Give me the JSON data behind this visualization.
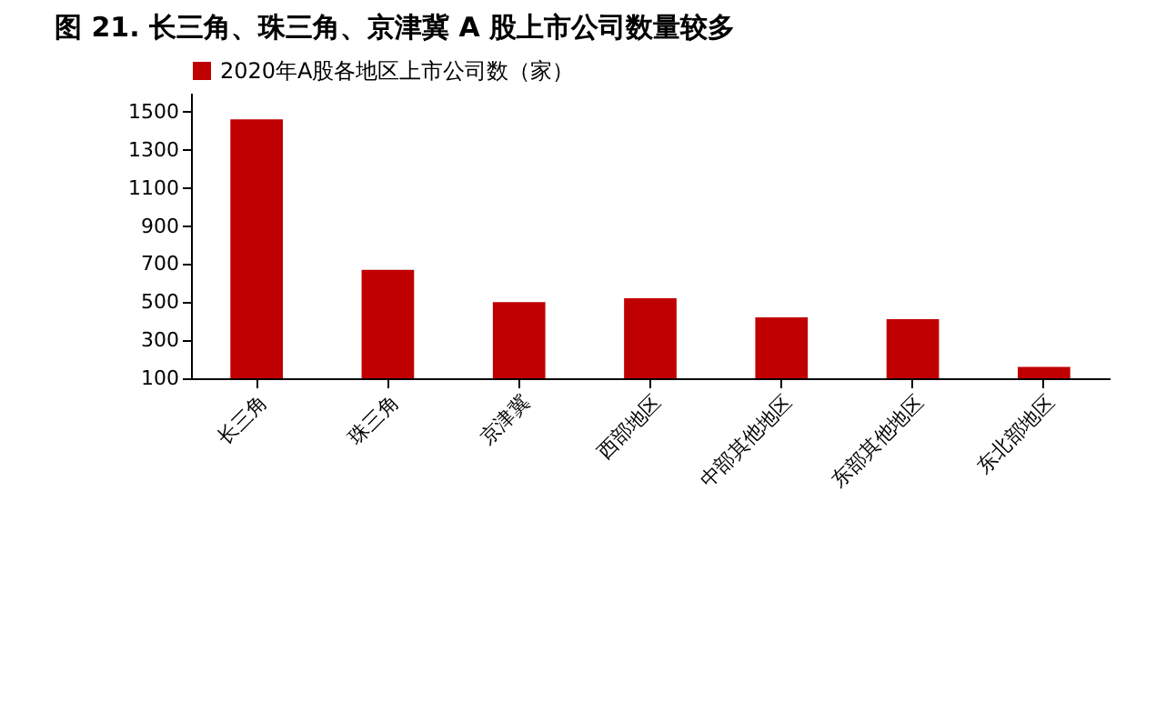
{
  "chart_data": {
    "type": "bar",
    "title": "图 21. 长三角、珠三角、京津冀 A 股上市公司数量较多",
    "categories": [
      "长三角",
      "珠三角",
      "京津冀",
      "西部地区",
      "中部其他地区",
      "东部其他地区",
      "东北部地区"
    ],
    "series": [
      {
        "name": "2020年A股各地区上市公司数（家）",
        "color": "#c00000",
        "values": [
          1460,
          670,
          500,
          520,
          420,
          410,
          160
        ]
      }
    ],
    "ylim": [
      100,
      1600
    ],
    "yticks": [
      100,
      300,
      500,
      700,
      900,
      1100,
      1300,
      1500
    ],
    "grid": false,
    "legend": "top"
  }
}
